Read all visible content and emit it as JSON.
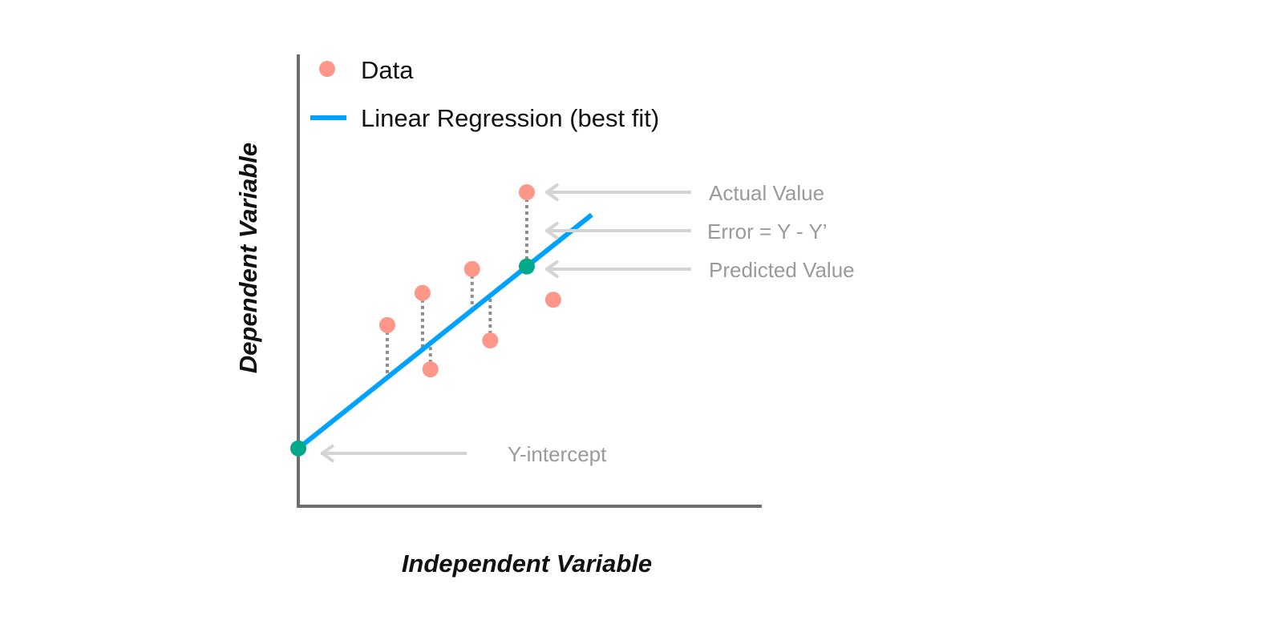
{
  "chart_data": {
    "type": "scatter",
    "title": "",
    "xlabel": "Independent Variable",
    "ylabel": "Dependent Variable",
    "xlim": [
      0,
      100
    ],
    "ylim": [
      0,
      100
    ],
    "grid": false,
    "legend": {
      "placement": "top-left",
      "entries": [
        {
          "label": "Data",
          "marker": "dot",
          "color": "#FF968A"
        },
        {
          "label": "Linear Regression (best fit)",
          "marker": "line",
          "color": "#00A2FF"
        }
      ]
    },
    "points": [
      {
        "x": 19.2,
        "y": 40.1,
        "residual": true
      },
      {
        "x": 26.8,
        "y": 47.2,
        "residual": true
      },
      {
        "x": 28.5,
        "y": 30.3,
        "residual": true
      },
      {
        "x": 37.5,
        "y": 52.5,
        "residual": true
      },
      {
        "x": 41.4,
        "y": 36.7,
        "residual": true
      },
      {
        "x": 49.3,
        "y": 69.5,
        "residual": true
      },
      {
        "x": 55.0,
        "y": 45.7,
        "residual": false
      }
    ],
    "regression": {
      "intercept": 12.8,
      "slope": 0.817,
      "x_range": [
        0,
        63.3
      ]
    },
    "highlight_points": [
      {
        "name": "y-intercept",
        "x": 0,
        "color": "#00A98A"
      },
      {
        "name": "predicted-value",
        "x": 49.3,
        "color": "#00A98A"
      }
    ],
    "annotations": [
      {
        "text": "Actual Value",
        "target": "actual"
      },
      {
        "text": "Error = Y - Y’",
        "target": "error"
      },
      {
        "text": "Predicted Value",
        "target": "predicted"
      },
      {
        "text": "Y-intercept",
        "target": "intercept"
      }
    ],
    "colors": {
      "axis": "#6e6e6e",
      "residual": "#8c8c8c",
      "arrow": "#d4d4d4"
    }
  }
}
